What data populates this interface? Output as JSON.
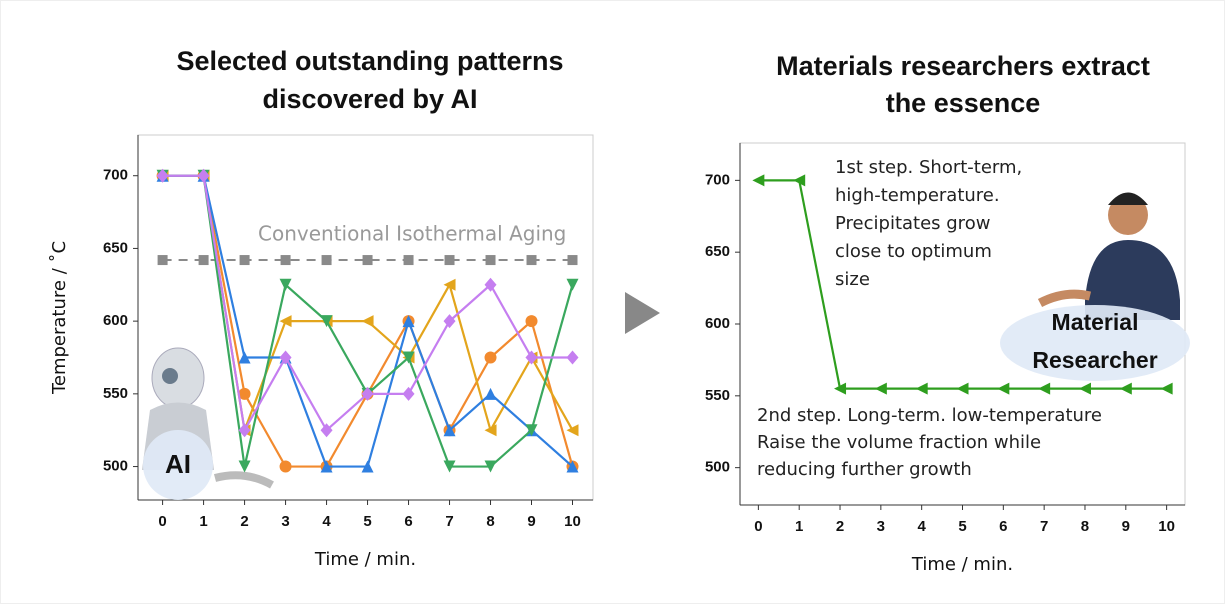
{
  "chart_data": [
    {
      "type": "line",
      "title": [
        "Selected outstanding patterns",
        "discovered by AI"
      ],
      "x_label": "Time / min.",
      "y_label": "Temperature / ˚C",
      "x": [
        0,
        1,
        2,
        3,
        4,
        5,
        6,
        7,
        8,
        9,
        10
      ],
      "xlim": [
        -0.6,
        10.5
      ],
      "xticks": [
        0,
        1,
        2,
        3,
        4,
        5,
        6,
        7,
        8,
        9,
        10
      ],
      "ylim": [
        477,
        728
      ],
      "yticks": [
        500,
        550,
        600,
        650,
        700
      ],
      "annotations": [
        "Conventional Isothermal Aging"
      ],
      "badge": [
        "AI"
      ],
      "series": [
        {
          "color": "#8a8a8a",
          "marker": "square",
          "dash": true,
          "values": [
            642,
            642,
            642,
            642,
            642,
            642,
            642,
            642,
            642,
            642,
            642
          ]
        },
        {
          "color": "#f28a2e",
          "marker": "circle",
          "values": [
            700,
            700,
            550,
            500,
            500,
            550,
            600,
            525,
            575,
            600,
            500
          ]
        },
        {
          "color": "#e3a51c",
          "marker": "triangle-left",
          "values": [
            700,
            700,
            525,
            600,
            600,
            600,
            575,
            625,
            525,
            575,
            525
          ]
        },
        {
          "color": "#2f7fe0",
          "marker": "triangle-up",
          "values": [
            700,
            700,
            575,
            575,
            500,
            500,
            600,
            525,
            550,
            525,
            500
          ]
        },
        {
          "color": "#3aa85e",
          "marker": "triangle-down",
          "values": [
            700,
            700,
            500,
            625,
            600,
            550,
            575,
            500,
            500,
            525,
            625
          ]
        },
        {
          "color": "#c57ef0",
          "marker": "diamond",
          "values": [
            700,
            700,
            525,
            575,
            525,
            550,
            550,
            600,
            625,
            575,
            575
          ]
        }
      ]
    },
    {
      "type": "line",
      "title": [
        "Materials researchers extract",
        "the essence"
      ],
      "x_label": "Time / min.",
      "x": [
        0,
        1,
        2,
        3,
        4,
        5,
        6,
        7,
        8,
        9,
        10
      ],
      "xlim": [
        -0.45,
        10.45
      ],
      "xticks": [
        0,
        1,
        2,
        3,
        4,
        5,
        6,
        7,
        8,
        9,
        10
      ],
      "ylim": [
        474,
        726
      ],
      "yticks": [
        500,
        550,
        600,
        650,
        700
      ],
      "annotations": [
        "1st step. Short-term,",
        "high-temperature.",
        "Precipitates grow",
        "close to optimum",
        "size",
        "2nd step. Long-term. low-temperature",
        "Raise the volume fraction while",
        "reducing further growth"
      ],
      "badge": [
        "Material",
        "Researcher"
      ],
      "series": [
        {
          "color": "#2e9e1e",
          "marker": "triangle-left",
          "values": [
            700,
            700,
            555,
            555,
            555,
            555,
            555,
            555,
            555,
            555,
            555
          ]
        }
      ]
    }
  ]
}
